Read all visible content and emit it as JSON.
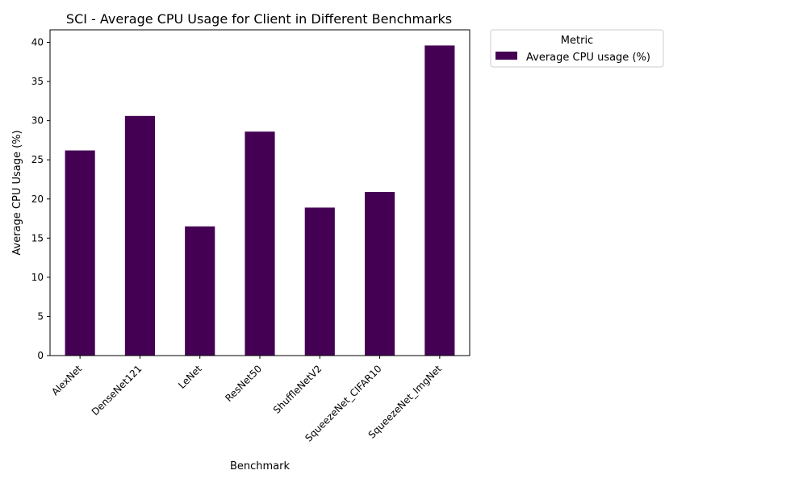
{
  "chart_data": {
    "type": "bar",
    "title": "SCI - Average CPU Usage for Client in Different Benchmarks",
    "xlabel": "Benchmark",
    "ylabel": "Average CPU Usage (%)",
    "categories": [
      "AlexNet",
      "DenseNet121",
      "LeNet",
      "ResNet50",
      "ShuffleNetV2",
      "SqueezeNet_CIFAR10",
      "SqueezeNet_ImgNet"
    ],
    "series": [
      {
        "name": "Average CPU usage (%)",
        "values": [
          26.2,
          30.6,
          16.5,
          28.6,
          18.9,
          20.9,
          39.6
        ],
        "color": "#440154"
      }
    ],
    "ylim": [
      0,
      41.6
    ],
    "yticks": [
      0,
      5,
      10,
      15,
      20,
      25,
      30,
      35,
      40
    ],
    "grid": false,
    "legend": {
      "title": "Metric",
      "placement": "outside-top-right"
    }
  }
}
